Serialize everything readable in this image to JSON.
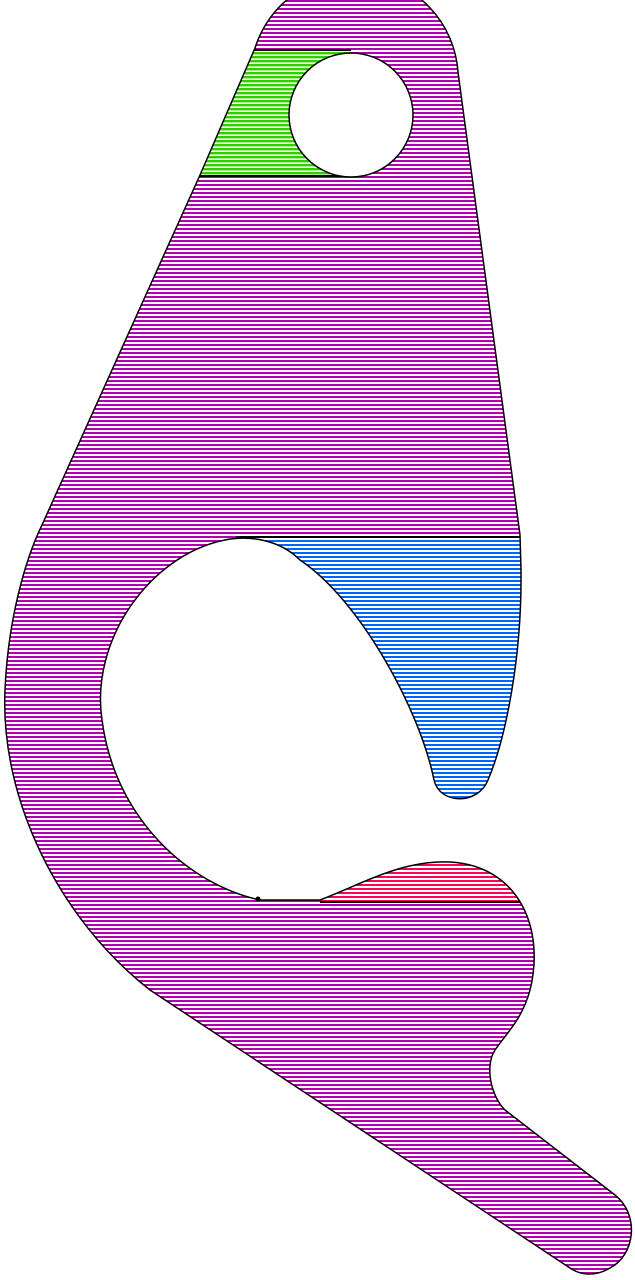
{
  "colors": {
    "main": "#b000b0",
    "top_region": "#33cc00",
    "middle_region": "#0066ff",
    "bottom_region": "#ff0055",
    "outline": "#000000"
  },
  "hatch": "horizontal"
}
